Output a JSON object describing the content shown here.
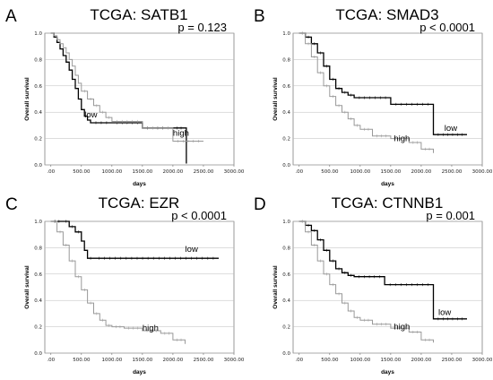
{
  "chart_data": [
    {
      "letter": "A",
      "type": "line",
      "title": "TCGA: SATB1",
      "p_value": "p = 0.123",
      "xlabel": "days",
      "ylabel": "Overall survival",
      "xlim": [
        -100,
        3000
      ],
      "ylim": [
        0,
        1
      ],
      "xticks": [
        ".00",
        "500.00",
        "1000.00",
        "1500.00",
        "2000.00",
        "2500.00",
        "3000.00"
      ],
      "yticks": [
        "0.0",
        "0.2",
        "0.4",
        "0.6",
        "0.8",
        "1.0"
      ],
      "series": [
        {
          "name": "low",
          "color": "#000000",
          "label_at": [
            550,
            0.36
          ],
          "x": [
            0,
            50,
            100,
            150,
            200,
            250,
            300,
            350,
            400,
            450,
            500,
            550,
            600,
            650,
            1000,
            1500,
            2000,
            2200,
            2220
          ],
          "y": [
            1.0,
            0.97,
            0.93,
            0.88,
            0.83,
            0.78,
            0.72,
            0.65,
            0.58,
            0.5,
            0.42,
            0.37,
            0.34,
            0.32,
            0.32,
            0.28,
            0.28,
            0.28,
            0.01
          ]
        },
        {
          "name": "high",
          "color": "#999999",
          "label_at": [
            2000,
            0.22
          ],
          "x": [
            0,
            50,
            100,
            150,
            200,
            250,
            300,
            350,
            400,
            450,
            500,
            600,
            700,
            800,
            900,
            1000,
            1500,
            2000,
            2500
          ],
          "y": [
            1.0,
            0.98,
            0.95,
            0.92,
            0.89,
            0.85,
            0.8,
            0.75,
            0.68,
            0.62,
            0.56,
            0.5,
            0.45,
            0.4,
            0.36,
            0.33,
            0.28,
            0.18,
            0.18
          ]
        }
      ]
    },
    {
      "letter": "B",
      "type": "line",
      "title": "TCGA: SMAD3",
      "p_value": "p < 0.0001",
      "xlabel": "days",
      "ylabel": "Overall survival",
      "xlim": [
        -100,
        3000
      ],
      "ylim": [
        0,
        1
      ],
      "xticks": [
        ".00",
        "500.00",
        "1000.00",
        "1500.00",
        "2000.00",
        "2500.00",
        "3000.00"
      ],
      "yticks": [
        "0.0",
        "0.2",
        "0.4",
        "0.6",
        "0.8",
        "1.0"
      ],
      "series": [
        {
          "name": "low",
          "color": "#000000",
          "label_at": [
            2380,
            0.26
          ],
          "x": [
            0,
            100,
            200,
            300,
            400,
            500,
            600,
            700,
            800,
            900,
            1500,
            2200,
            2750
          ],
          "y": [
            1.0,
            0.97,
            0.92,
            0.85,
            0.75,
            0.65,
            0.58,
            0.55,
            0.53,
            0.51,
            0.46,
            0.23,
            0.23
          ]
        },
        {
          "name": "high",
          "color": "#999999",
          "label_at": [
            1550,
            0.18
          ],
          "x": [
            0,
            100,
            200,
            300,
            400,
            500,
            600,
            700,
            800,
            900,
            1000,
            1200,
            1500,
            1800,
            2000,
            2200
          ],
          "y": [
            1.0,
            0.92,
            0.82,
            0.7,
            0.6,
            0.52,
            0.45,
            0.4,
            0.35,
            0.3,
            0.27,
            0.22,
            0.2,
            0.17,
            0.12,
            0.09
          ]
        }
      ]
    },
    {
      "letter": "C",
      "type": "line",
      "title": "TCGA: EZR",
      "p_value": "p < 0.0001",
      "xlabel": "days",
      "ylabel": "Overall survival",
      "xlim": [
        -100,
        3000
      ],
      "ylim": [
        0,
        1
      ],
      "xticks": [
        ".00",
        "500.00",
        "1000.00",
        "1500.00",
        "2000.00",
        "2500.00",
        "3000.00"
      ],
      "yticks": [
        "0.0",
        "0.2",
        "0.4",
        "0.6",
        "0.8",
        "1.0"
      ],
      "series": [
        {
          "name": "low",
          "color": "#000000",
          "label_at": [
            2200,
            0.77
          ],
          "x": [
            0,
            200,
            300,
            400,
            500,
            550,
            600,
            700,
            2750
          ],
          "y": [
            1.0,
            1.0,
            0.96,
            0.92,
            0.85,
            0.78,
            0.72,
            0.72,
            0.72
          ]
        },
        {
          "name": "high",
          "color": "#999999",
          "label_at": [
            1500,
            0.17
          ],
          "x": [
            0,
            100,
            200,
            300,
            400,
            500,
            600,
            700,
            800,
            900,
            1000,
            1200,
            1500,
            1800,
            2000,
            2200
          ],
          "y": [
            1.0,
            0.92,
            0.82,
            0.7,
            0.58,
            0.48,
            0.38,
            0.3,
            0.25,
            0.21,
            0.2,
            0.19,
            0.17,
            0.15,
            0.1,
            0.07
          ]
        }
      ]
    },
    {
      "letter": "D",
      "type": "line",
      "title": "TCGA: CTNNB1",
      "p_value": "p = 0.001",
      "xlabel": "days",
      "ylabel": "Overall survival",
      "xlim": [
        -100,
        3000
      ],
      "ylim": [
        0,
        1
      ],
      "xticks": [
        ".00",
        "500.00",
        "1000.00",
        "1500.00",
        "2000.00",
        "2500.00",
        "3000.00"
      ],
      "yticks": [
        "0.0",
        "0.2",
        "0.4",
        "0.6",
        "0.8",
        "1.0"
      ],
      "series": [
        {
          "name": "low",
          "color": "#000000",
          "label_at": [
            2280,
            0.29
          ],
          "x": [
            0,
            100,
            200,
            300,
            400,
            500,
            600,
            700,
            800,
            900,
            1400,
            2200,
            2750
          ],
          "y": [
            1.0,
            0.97,
            0.93,
            0.86,
            0.78,
            0.7,
            0.64,
            0.61,
            0.59,
            0.58,
            0.52,
            0.26,
            0.26
          ]
        },
        {
          "name": "high",
          "color": "#999999",
          "label_at": [
            1550,
            0.18
          ],
          "x": [
            0,
            100,
            200,
            300,
            400,
            500,
            600,
            700,
            800,
            900,
            1000,
            1200,
            1500,
            1800,
            2000,
            2200
          ],
          "y": [
            1.0,
            0.92,
            0.82,
            0.7,
            0.6,
            0.52,
            0.45,
            0.38,
            0.32,
            0.27,
            0.25,
            0.22,
            0.19,
            0.16,
            0.1,
            0.08
          ]
        }
      ]
    }
  ]
}
